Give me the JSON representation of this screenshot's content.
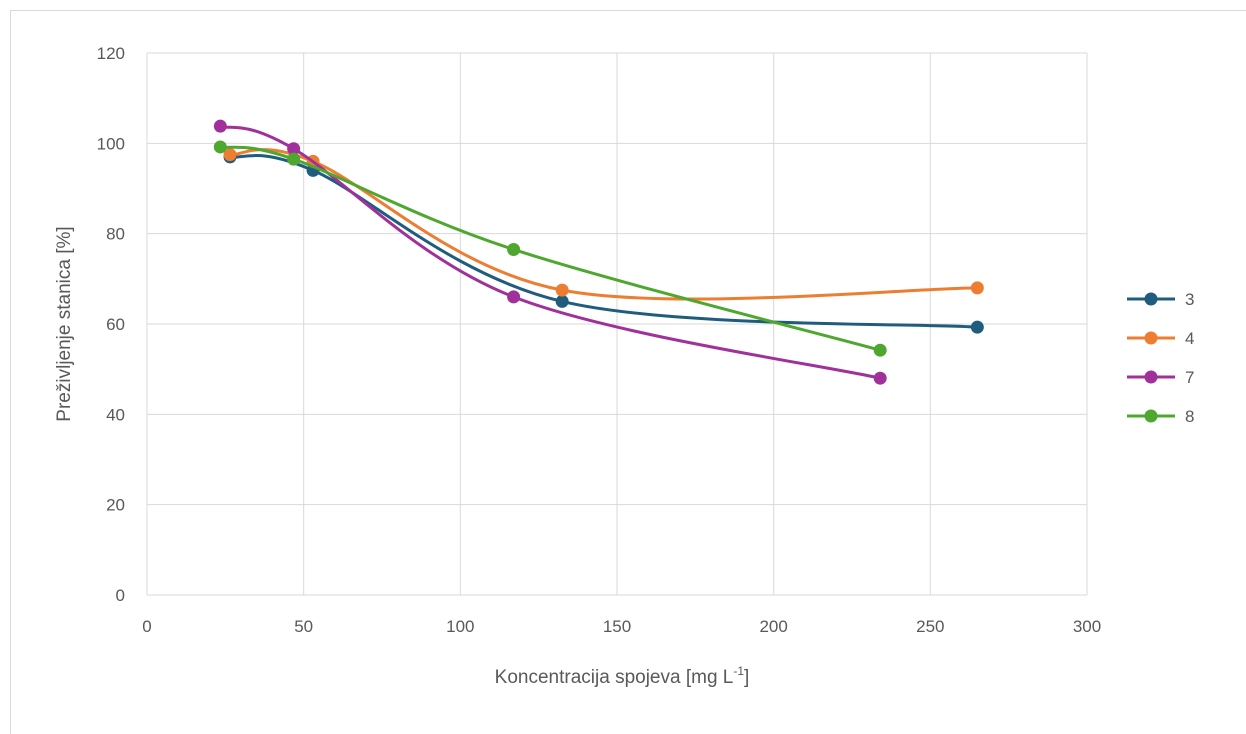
{
  "chart_data": {
    "type": "scatter",
    "title": "",
    "xlabel": "Koncentracija spojeva [mg L",
    "xlabel_sup": "-1",
    "xlabel_suffix": "]",
    "ylabel": "Preživljenje stanica [%]",
    "xlim": [
      0,
      300
    ],
    "ylim": [
      0,
      120
    ],
    "xticks": [
      "0",
      "50",
      "100",
      "150",
      "200",
      "250",
      "300"
    ],
    "yticks": [
      "0",
      "20",
      "40",
      "60",
      "80",
      "100",
      "120"
    ],
    "grid": true,
    "smooth_lines": true,
    "legend_position": "right",
    "series": [
      {
        "name": "3",
        "color": "#1f5c7d",
        "points": [
          [
            26.5,
            97
          ],
          [
            53,
            94
          ],
          [
            132.5,
            65
          ],
          [
            265,
            59.3
          ]
        ]
      },
      {
        "name": "4",
        "color": "#ed7d31",
        "points": [
          [
            26.5,
            97.5
          ],
          [
            53,
            96
          ],
          [
            132.5,
            67.5
          ],
          [
            265,
            68
          ]
        ]
      },
      {
        "name": "7",
        "color": "#a0309a",
        "points": [
          [
            23.4,
            103.8
          ],
          [
            46.8,
            98.8
          ],
          [
            117,
            66
          ],
          [
            234,
            48
          ]
        ]
      },
      {
        "name": "8",
        "color": "#4ea72e",
        "points": [
          [
            23.4,
            99.2
          ],
          [
            46.8,
            96.5
          ],
          [
            117,
            76.5
          ],
          [
            234,
            54.2
          ]
        ]
      }
    ]
  }
}
